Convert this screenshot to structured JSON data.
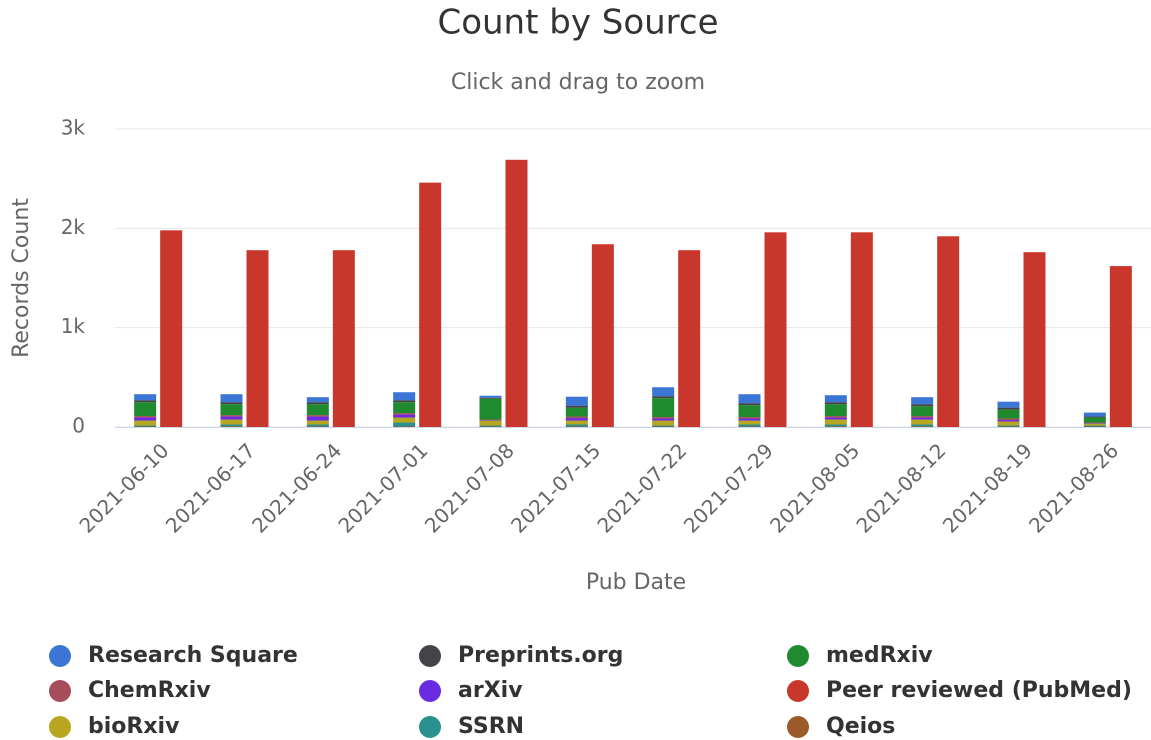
{
  "chart_data": {
    "type": "stacked_bar",
    "title": "Count by Source",
    "subtitle": "Click and drag to zoom",
    "x_label": "Pub Date",
    "y_label": "Records Count",
    "categories": [
      "2021-06-10",
      "2021-06-17",
      "2021-06-24",
      "2021-07-01",
      "2021-07-08",
      "2021-07-15",
      "2021-07-22",
      "2021-07-29",
      "2021-08-05",
      "2021-08-12",
      "2021-08-19",
      "2021-08-26"
    ],
    "ylim": [
      0,
      3000
    ],
    "yticks": [
      0,
      {
        "value": 1000,
        "label": "1k"
      },
      {
        "value": 2000,
        "label": "2k"
      },
      {
        "value": 3000,
        "label": "3k"
      }
    ],
    "grid": true,
    "legend": "bottom",
    "series": [
      {
        "name": "Research Square",
        "color": "#3b75d6",
        "stack": 0,
        "values": [
          60,
          80,
          50,
          80,
          20,
          90,
          90,
          90,
          70,
          70,
          60,
          40
        ]
      },
      {
        "name": "Preprints.org",
        "color": "#434348",
        "stack": 0,
        "values": [
          20,
          20,
          20,
          20,
          10,
          20,
          20,
          20,
          20,
          20,
          20,
          10
        ]
      },
      {
        "name": "medRxiv",
        "color": "#1f8a2e",
        "stack": 0,
        "values": [
          140,
          110,
          110,
          110,
          210,
          90,
          190,
          120,
          120,
          100,
          90,
          50
        ]
      },
      {
        "name": "ChemRxiv",
        "color": "#a64d5a",
        "stack": 0,
        "values": [
          15,
          15,
          15,
          15,
          5,
          15,
          15,
          15,
          15,
          15,
          15,
          5
        ]
      },
      {
        "name": "arXiv",
        "color": "#6a2be2",
        "stack": 0,
        "values": [
          30,
          30,
          40,
          30,
          5,
          25,
          20,
          20,
          20,
          20,
          15,
          5
        ]
      },
      {
        "name": "Peer reviewed (PubMed)",
        "color": "#c9372c",
        "stack": 1,
        "values": [
          1980,
          1780,
          1780,
          2460,
          2690,
          1840,
          1780,
          1960,
          1960,
          1920,
          1760,
          1620
        ]
      },
      {
        "name": "bioRxiv",
        "color": "#b8a520",
        "stack": 0,
        "values": [
          50,
          50,
          40,
          50,
          50,
          40,
          50,
          40,
          50,
          50,
          40,
          20
        ]
      },
      {
        "name": "SSRN",
        "color": "#2a9090",
        "stack": 0,
        "values": [
          10,
          20,
          20,
          40,
          10,
          20,
          10,
          20,
          20,
          20,
          10,
          10
        ]
      },
      {
        "name": "Qeios",
        "color": "#9a5a2a",
        "stack": 0,
        "values": [
          5,
          5,
          5,
          5,
          5,
          5,
          5,
          5,
          5,
          5,
          5,
          5
        ]
      }
    ]
  }
}
